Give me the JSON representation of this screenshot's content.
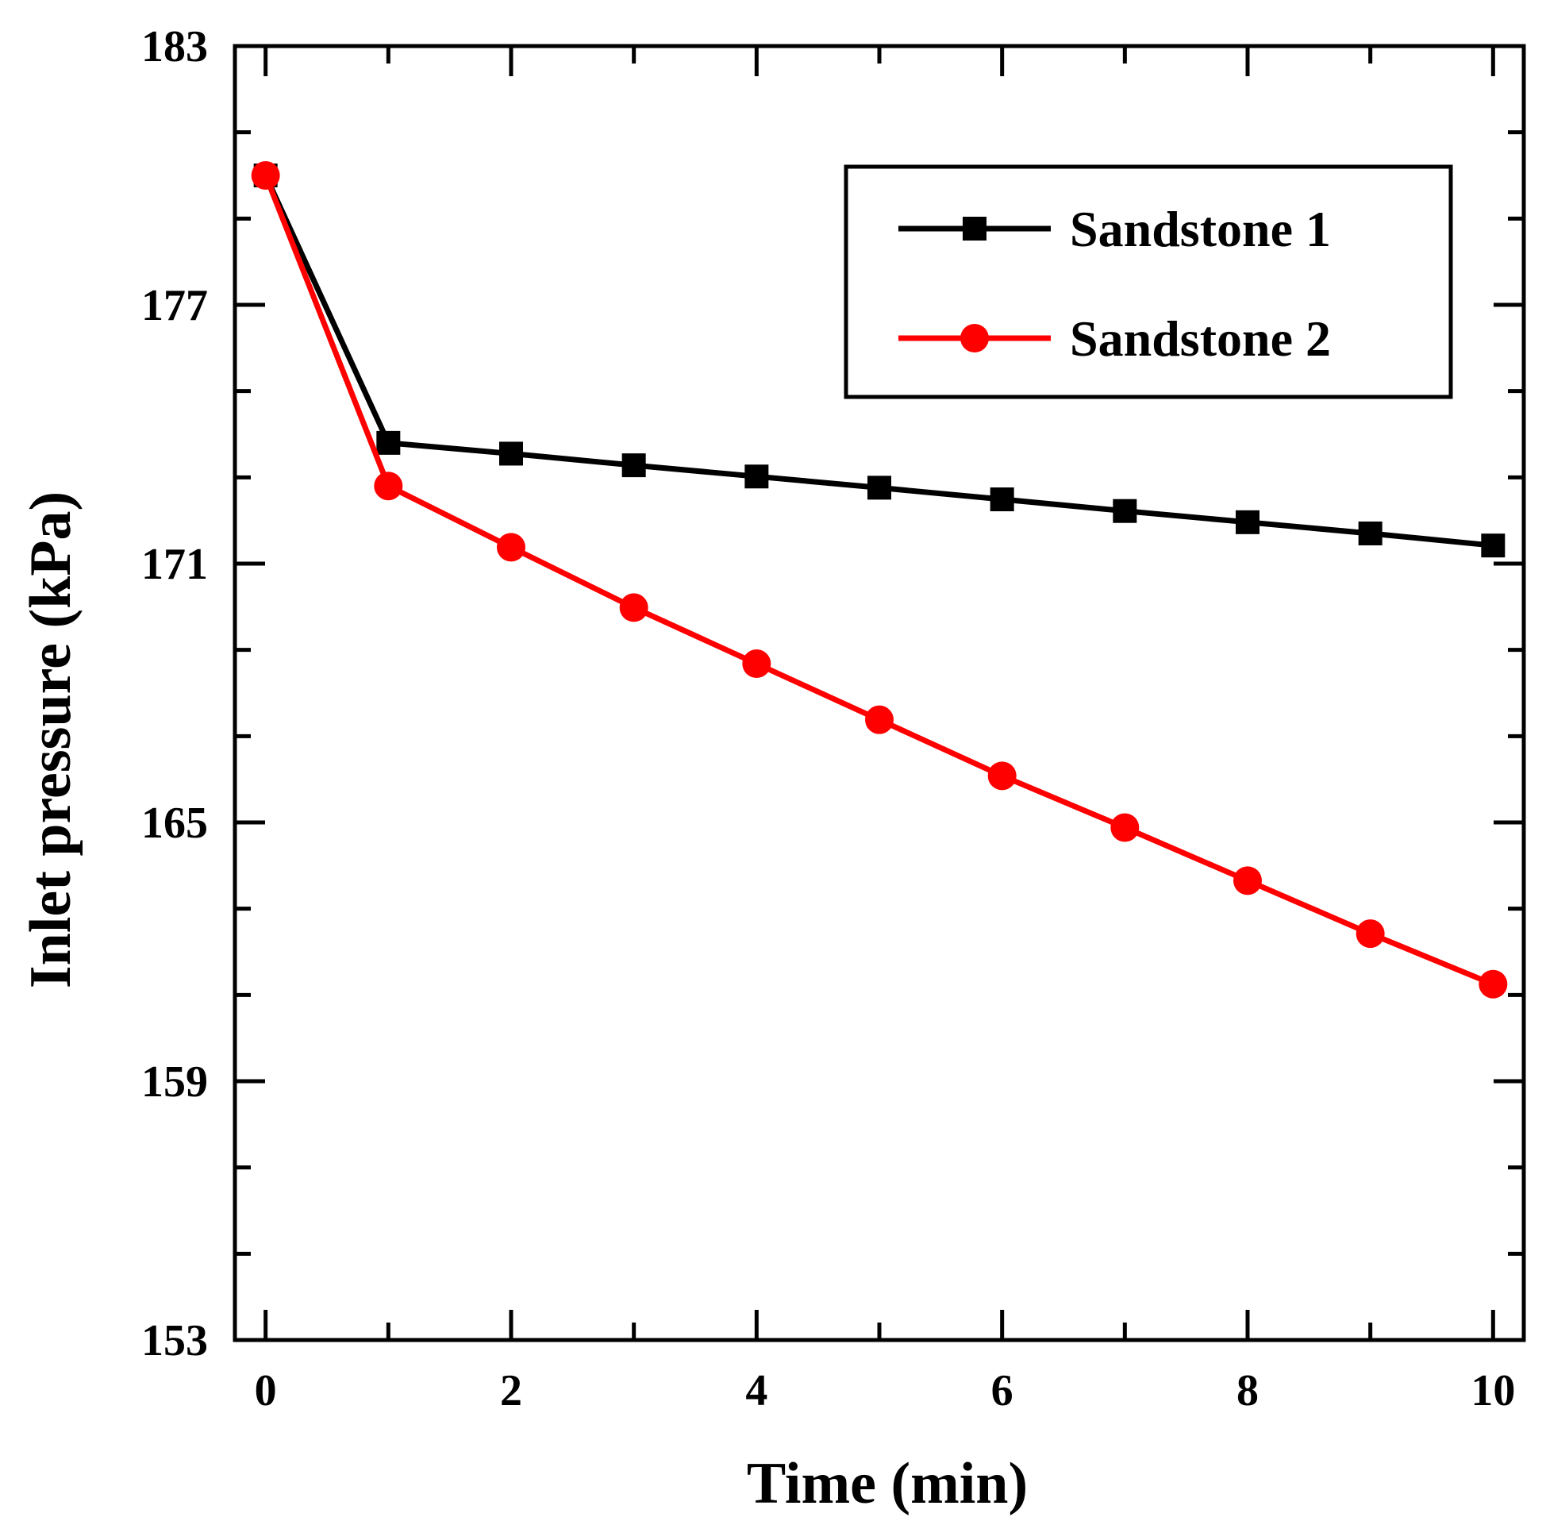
{
  "chart_data": {
    "type": "line",
    "title": "",
    "xlabel": "Time (min)",
    "ylabel": "Inlet pressure (kPa)",
    "xlim": [
      -0.25,
      10.25
    ],
    "ylim": [
      153,
      183
    ],
    "xticks": [
      0,
      2,
      4,
      6,
      8,
      10
    ],
    "yticks": [
      153,
      159,
      165,
      171,
      177,
      183
    ],
    "grid": false,
    "legend_position": "top-right",
    "x": [
      0,
      1,
      2,
      3,
      4,
      5,
      6,
      7,
      8,
      9,
      10
    ],
    "series": [
      {
        "name": "Sandstone 1",
        "marker": "square",
        "color": "#000000",
        "values": [
          180.0,
          173.8,
          173.55,
          173.28,
          173.02,
          172.76,
          172.49,
          172.22,
          171.96,
          171.7,
          171.42
        ]
      },
      {
        "name": "Sandstone 2",
        "marker": "circle",
        "color": "#ff0000",
        "values": [
          180.0,
          172.8,
          171.38,
          169.98,
          168.68,
          167.38,
          166.08,
          164.88,
          163.65,
          162.42,
          161.25
        ]
      }
    ]
  }
}
